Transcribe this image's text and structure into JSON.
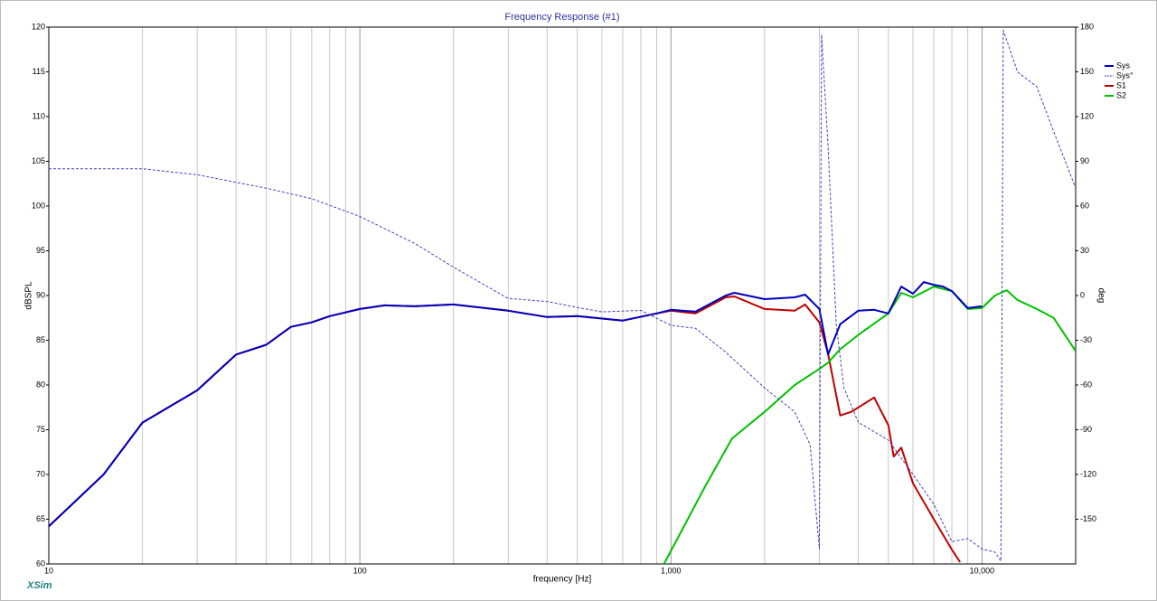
{
  "chart_data": {
    "type": "line",
    "title": "Frequency Response (#1)",
    "xlabel": "frequency [Hz]",
    "ylabel": "dBSPL",
    "y2label": "deg",
    "watermark": "XSim",
    "xscale": "log",
    "xlim": [
      10,
      20000
    ],
    "xticks": [
      10,
      100,
      {
        "value": 1000,
        "label": "1,000"
      },
      {
        "value": 10000,
        "label": "10,000"
      }
    ],
    "xgrid_minor": [
      20,
      30,
      40,
      50,
      60,
      70,
      80,
      90,
      200,
      300,
      400,
      500,
      600,
      700,
      800,
      900,
      2000,
      3000,
      4000,
      5000,
      6000,
      7000,
      8000,
      9000
    ],
    "ylim": [
      60,
      120
    ],
    "yticks": [
      60,
      65,
      70,
      75,
      80,
      85,
      90,
      95,
      100,
      105,
      110,
      115,
      120
    ],
    "y2lim": [
      -180,
      180
    ],
    "y2ticks": [
      -150,
      -120,
      -90,
      -60,
      -30,
      0,
      30,
      60,
      90,
      120,
      150,
      180
    ],
    "grid": true,
    "legend": "top-right",
    "series": [
      {
        "name": "Sys",
        "color": "#0000c0",
        "x": [
          10,
          15,
          20,
          30,
          40,
          50,
          60,
          70,
          80,
          100,
          120,
          150,
          200,
          300,
          400,
          500,
          700,
          900,
          1000,
          1200,
          1500,
          1600,
          2000,
          2500,
          2700,
          3000,
          3200,
          3500,
          4000,
          4500,
          5000,
          5500,
          6000,
          6500,
          7000,
          7500,
          8000,
          9000,
          10000
        ],
        "values": [
          64.2,
          70,
          75.8,
          79.4,
          83.4,
          84.5,
          86.5,
          87,
          87.7,
          88.5,
          88.9,
          88.8,
          89,
          88.3,
          87.6,
          87.7,
          87.2,
          88,
          88.4,
          88.2,
          90,
          90.3,
          89.6,
          89.8,
          90.1,
          88.5,
          83.4,
          86.8,
          88.3,
          88.4,
          88,
          91,
          90.2,
          91.5,
          91.2,
          91,
          90.5,
          88.6,
          88.8
        ]
      },
      {
        "name": "Sys°",
        "color": "#4040c0",
        "dash": true,
        "axis": "y2",
        "x": [
          10,
          20,
          30,
          50,
          70,
          100,
          150,
          200,
          300,
          400,
          500,
          600,
          800,
          1000,
          1200,
          1500,
          2000,
          2500,
          2800,
          3000,
          3050,
          3200,
          3400,
          3600,
          4000,
          5000,
          6000,
          7000,
          8000,
          9000,
          10000,
          11000,
          11500,
          11700,
          13000,
          15000,
          17000,
          20000
        ],
        "values": [
          85,
          85,
          81,
          72,
          65,
          53,
          35,
          19,
          -2,
          -4,
          -8,
          -11,
          -10,
          -20,
          -22,
          -38,
          -62,
          -78,
          -100,
          -170,
          175,
          100,
          -20,
          -62,
          -85,
          -97,
          -120,
          -140,
          -165,
          -163,
          -170,
          -172,
          -178,
          178,
          150,
          140,
          110,
          72
        ]
      },
      {
        "name": "S1",
        "color": "#c00000",
        "x": [
          10,
          15,
          20,
          30,
          40,
          50,
          60,
          70,
          80,
          100,
          120,
          150,
          200,
          300,
          400,
          500,
          700,
          900,
          1000,
          1200,
          1500,
          1600,
          2000,
          2500,
          2700,
          3000,
          3200,
          3500,
          3800,
          4500,
          5000,
          5200,
          5500,
          6000,
          7000,
          8000,
          8500
        ],
        "values": [
          64.2,
          70,
          75.8,
          79.4,
          83.4,
          84.5,
          86.5,
          87,
          87.7,
          88.5,
          88.9,
          88.8,
          89,
          88.3,
          87.6,
          87.7,
          87.2,
          88,
          88.3,
          88,
          89.8,
          89.9,
          88.5,
          88.3,
          89,
          87,
          83.5,
          76.6,
          77,
          78.6,
          75.5,
          72,
          73,
          69,
          65,
          61.6,
          60.2
        ]
      },
      {
        "name": "S2",
        "color": "#00c000",
        "x": [
          950,
          1280,
          1570,
          2000,
          2500,
          3000,
          3200,
          3500,
          4000,
          5000,
          5500,
          6000,
          7000,
          8000,
          9000,
          10000,
          11000,
          12000,
          13000,
          15000,
          17000,
          20000
        ],
        "values": [
          60,
          68.5,
          74,
          77,
          80,
          81.8,
          82.5,
          84,
          85.6,
          88,
          90.3,
          89.8,
          91,
          90.5,
          88.5,
          88.6,
          90,
          90.6,
          89.5,
          88.5,
          87.5,
          83.8
        ]
      }
    ]
  }
}
